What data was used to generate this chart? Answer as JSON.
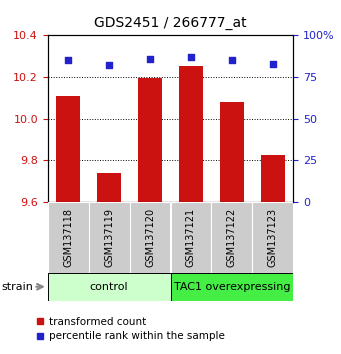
{
  "title": "GDS2451 / 266777_at",
  "samples": [
    "GSM137118",
    "GSM137119",
    "GSM137120",
    "GSM137121",
    "GSM137122",
    "GSM137123"
  ],
  "transformed_counts": [
    10.11,
    9.74,
    10.195,
    10.255,
    10.08,
    9.825
  ],
  "percentile_ranks": [
    85,
    82,
    86,
    87,
    85,
    83
  ],
  "ylim_left": [
    9.6,
    10.4
  ],
  "ylim_right": [
    0,
    100
  ],
  "yticks_left": [
    9.6,
    9.8,
    10.0,
    10.2,
    10.4
  ],
  "yticks_right": [
    0,
    25,
    50,
    75,
    100
  ],
  "bar_color": "#cc1111",
  "dot_color": "#2222cc",
  "groups": [
    {
      "label": "control",
      "indices": [
        0,
        1,
        2
      ],
      "color": "#ccffcc"
    },
    {
      "label": "TAC1 overexpressing",
      "indices": [
        3,
        4,
        5
      ],
      "color": "#44ee44"
    }
  ],
  "group_label": "strain",
  "legend_bar_label": "transformed count",
  "legend_dot_label": "percentile rank within the sample",
  "left_tick_color": "#cc1111",
  "right_tick_color": "#2222cc",
  "bar_bottom": 9.6,
  "sample_box_color": "#cccccc",
  "gridline_ticks": [
    9.8,
    10.0,
    10.2
  ]
}
